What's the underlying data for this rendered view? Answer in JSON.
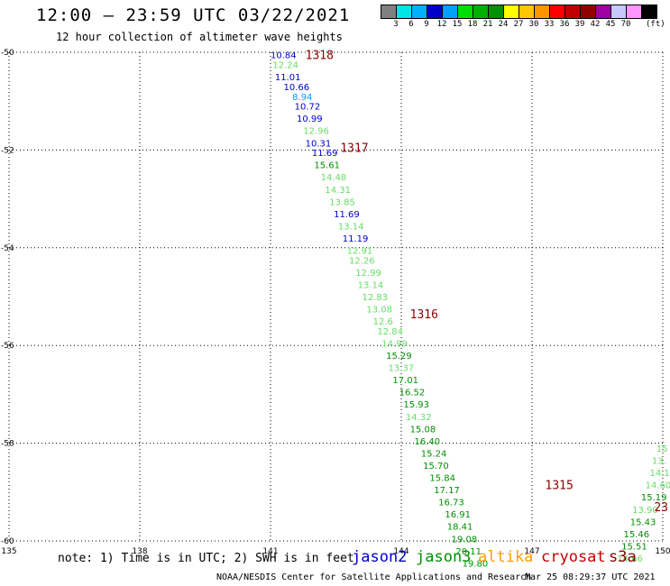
{
  "title": "12:00 – 23:59 UTC 03/22/2021",
  "subtitle": "12 hour collection of altimeter wave heights",
  "legend_scale": {
    "colors": [
      "#808080",
      "#00e5e5",
      "#00b0ff",
      "#0000c8",
      "#00a0ff",
      "#00dd00",
      "#00b000",
      "#009000",
      "#ffff00",
      "#ffc800",
      "#ff9600",
      "#ff0000",
      "#c00000",
      "#900000",
      "#a000a0",
      "#c8c8ff",
      "#ff96ff",
      "#000000"
    ],
    "labels": [
      "3",
      "6",
      "9",
      "12",
      "15",
      "18",
      "21",
      "24",
      "27",
      "30",
      "33",
      "36",
      "39",
      "42",
      "45",
      "70"
    ],
    "unit": "(ft)"
  },
  "note": "note: 1) Time is in UTC; 2) SWH is in feet",
  "satellites": [
    {
      "name": "jason2",
      "color": "#0000c8"
    },
    {
      "name": "jason3",
      "color": "#009000"
    },
    {
      "name": "altika",
      "color": "#ffa000"
    },
    {
      "name": "cryosat",
      "color": "#c80000"
    },
    {
      "name": "s3a",
      "color": "#8b0000"
    }
  ],
  "footer": "NOAA/NESDIS Center for Satellite Applications and Research",
  "timestamp": "Mar 25 08:29:37 UTC 2021",
  "chart_data": {
    "type": "scatter",
    "xlim": [
      135,
      150
    ],
    "ylim": [
      -60,
      -50
    ],
    "x_ticks": [
      "135",
      "138",
      "141",
      "144",
      "147",
      "150"
    ],
    "y_ticks": [
      "-50",
      "-52",
      "-54",
      "-56",
      "-58",
      "-60"
    ],
    "grid": true,
    "times": [
      {
        "label": "1318",
        "x": 141.8,
        "y": -50.05
      },
      {
        "label": "1317",
        "x": 142.6,
        "y": -51.95
      },
      {
        "label": "1316",
        "x": 144.2,
        "y": -55.35
      },
      {
        "label": "1315",
        "x": 147.3,
        "y": -58.85
      },
      {
        "label": "23",
        "x": 149.8,
        "y": -59.3
      }
    ],
    "points": [
      {
        "x": 141.0,
        "y": -50.05,
        "v": "10.84",
        "c": "#0000c8"
      },
      {
        "x": 141.05,
        "y": -50.25,
        "v": "12.24",
        "c": "#66dd66"
      },
      {
        "x": 141.1,
        "y": -50.5,
        "v": "11.01",
        "c": "#0000c8"
      },
      {
        "x": 141.3,
        "y": -50.7,
        "v": "10.66",
        "c": "#0000c8"
      },
      {
        "x": 141.5,
        "y": -50.9,
        "v": "8.94",
        "c": "#00a0ff"
      },
      {
        "x": 141.55,
        "y": -51.1,
        "v": "10.72",
        "c": "#0000c8"
      },
      {
        "x": 141.6,
        "y": -51.35,
        "v": "10.99",
        "c": "#0000c8"
      },
      {
        "x": 141.75,
        "y": -51.6,
        "v": "12.96",
        "c": "#66dd66"
      },
      {
        "x": 141.8,
        "y": -51.85,
        "v": "10.31",
        "c": "#0000c8"
      },
      {
        "x": 141.95,
        "y": -52.05,
        "v": "11.69",
        "c": "#0000c8"
      },
      {
        "x": 142.0,
        "y": -52.3,
        "v": "15.61",
        "c": "#009000"
      },
      {
        "x": 142.15,
        "y": -52.55,
        "v": "14.48",
        "c": "#66dd66"
      },
      {
        "x": 142.25,
        "y": -52.8,
        "v": "14.31",
        "c": "#66dd66"
      },
      {
        "x": 142.35,
        "y": -53.05,
        "v": "13.85",
        "c": "#66dd66"
      },
      {
        "x": 142.45,
        "y": -53.3,
        "v": "11.69",
        "c": "#0000c8"
      },
      {
        "x": 142.55,
        "y": -53.55,
        "v": "13.14",
        "c": "#66dd66"
      },
      {
        "x": 142.65,
        "y": -53.8,
        "v": "11.19",
        "c": "#0000c8"
      },
      {
        "x": 142.75,
        "y": -54.05,
        "v": "12.91",
        "c": "#66dd66"
      },
      {
        "x": 142.8,
        "y": -54.25,
        "v": "12.26",
        "c": "#66dd66"
      },
      {
        "x": 142.95,
        "y": -54.5,
        "v": "12.99",
        "c": "#66dd66"
      },
      {
        "x": 143.0,
        "y": -54.75,
        "v": "13.14",
        "c": "#66dd66"
      },
      {
        "x": 143.1,
        "y": -55.0,
        "v": "12.83",
        "c": "#66dd66"
      },
      {
        "x": 143.2,
        "y": -55.25,
        "v": "13.08",
        "c": "#66dd66"
      },
      {
        "x": 143.35,
        "y": -55.5,
        "v": "12.6",
        "c": "#66dd66"
      },
      {
        "x": 143.45,
        "y": -55.7,
        "v": "12.84",
        "c": "#66dd66"
      },
      {
        "x": 143.55,
        "y": -55.95,
        "v": "14.99",
        "c": "#66dd66"
      },
      {
        "x": 143.65,
        "y": -56.2,
        "v": "15.29",
        "c": "#009000"
      },
      {
        "x": 143.7,
        "y": -56.45,
        "v": "13.37",
        "c": "#66dd66"
      },
      {
        "x": 143.8,
        "y": -56.7,
        "v": "17.01",
        "c": "#009000"
      },
      {
        "x": 143.95,
        "y": -56.95,
        "v": "16.52",
        "c": "#009000"
      },
      {
        "x": 144.05,
        "y": -57.2,
        "v": "15.93",
        "c": "#009000"
      },
      {
        "x": 144.1,
        "y": -57.45,
        "v": "14.32",
        "c": "#66dd66"
      },
      {
        "x": 144.2,
        "y": -57.7,
        "v": "15.08",
        "c": "#009000"
      },
      {
        "x": 144.3,
        "y": -57.95,
        "v": "16.40",
        "c": "#009000"
      },
      {
        "x": 144.45,
        "y": -58.2,
        "v": "15.24",
        "c": "#009000"
      },
      {
        "x": 144.5,
        "y": -58.45,
        "v": "15.70",
        "c": "#009000"
      },
      {
        "x": 144.65,
        "y": -58.7,
        "v": "15.84",
        "c": "#009000"
      },
      {
        "x": 144.75,
        "y": -58.95,
        "v": "17.17",
        "c": "#009000"
      },
      {
        "x": 144.85,
        "y": -59.2,
        "v": "16.73",
        "c": "#009000"
      },
      {
        "x": 145.0,
        "y": -59.45,
        "v": "16.91",
        "c": "#009000"
      },
      {
        "x": 145.05,
        "y": -59.7,
        "v": "18.41",
        "c": "#009000"
      },
      {
        "x": 145.15,
        "y": -59.95,
        "v": "19.08",
        "c": "#009000"
      },
      {
        "x": 145.25,
        "y": -60.2,
        "v": "20.11",
        "c": "#009000"
      },
      {
        "x": 145.4,
        "y": -60.45,
        "v": "19.80",
        "c": "#009000"
      },
      {
        "x": 149.85,
        "y": -58.1,
        "v": "15",
        "c": "#66dd66"
      },
      {
        "x": 149.75,
        "y": -58.35,
        "v": "13.",
        "c": "#66dd66"
      },
      {
        "x": 149.7,
        "y": -58.6,
        "v": "14.1",
        "c": "#66dd66"
      },
      {
        "x": 149.6,
        "y": -58.85,
        "v": "14.60",
        "c": "#66dd66"
      },
      {
        "x": 149.5,
        "y": -59.1,
        "v": "15.19",
        "c": "#009000"
      },
      {
        "x": 149.3,
        "y": -59.35,
        "v": "13.90",
        "c": "#66dd66"
      },
      {
        "x": 149.25,
        "y": -59.6,
        "v": "15.43",
        "c": "#009000"
      },
      {
        "x": 149.1,
        "y": -59.85,
        "v": "15.46",
        "c": "#009000"
      },
      {
        "x": 149.05,
        "y": -60.1,
        "v": "15.51",
        "c": "#009000"
      },
      {
        "x": 148.95,
        "y": -60.35,
        "v": "14.66",
        "c": "#66dd66"
      }
    ]
  }
}
